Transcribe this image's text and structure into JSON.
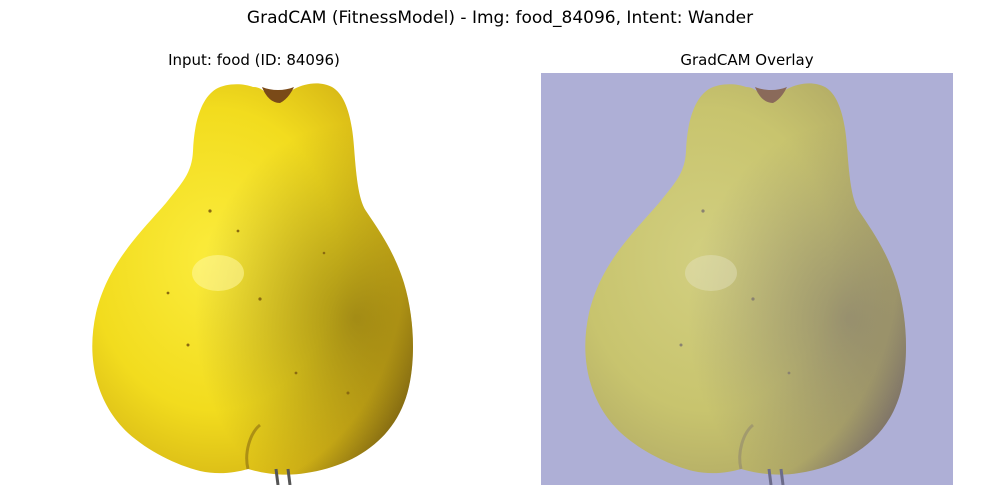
{
  "figure": {
    "suptitle": "GradCAM (FitnessModel) - Img: food_84096, Intent: Wander"
  },
  "panels": [
    {
      "title": "Input: food (ID: 84096)",
      "image": "photo of a yellow quince/pear on white background"
    },
    {
      "title": "GradCAM Overlay",
      "image": "same fruit photo tinted with a uniform lavender-blue heatmap"
    }
  ],
  "colors": {
    "fruit_yellow": "#f2dc1e",
    "fruit_shadow": "#a88a14",
    "overlay_tint": "#aeafd6",
    "overlay_fruit": "#c8c46e"
  }
}
